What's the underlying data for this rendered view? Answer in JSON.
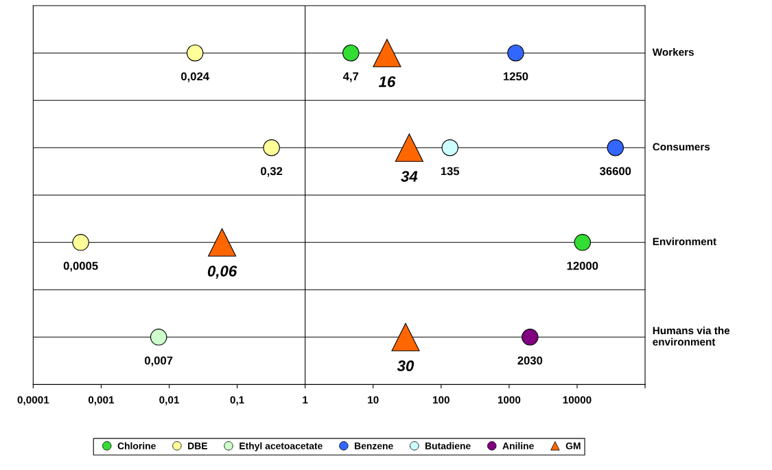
{
  "chart_data": {
    "type": "scatter",
    "orientation": "horizontal",
    "log": "x",
    "grid": "y",
    "legend": "bottom",
    "marker": "circle",
    "categories": [
      "Workers",
      "Consumers",
      "Environment",
      "Humans via the environment"
    ],
    "xlim": [
      0.0001,
      100000
    ],
    "xticks": [
      {
        "value": 0.0001,
        "label": "0,0001"
      },
      {
        "value": 0.001,
        "label": "0,001"
      },
      {
        "value": 0.01,
        "label": "0,01"
      },
      {
        "value": 0.1,
        "label": "0,1"
      },
      1,
      10,
      100,
      1000,
      10000,
      {
        "value": 100000,
        "label": null
      }
    ],
    "ref_lines": [
      {
        "axis": "x",
        "value": 1,
        "color": "#000000"
      }
    ],
    "series": [
      {
        "name": "Chlorine",
        "color": "#33dd33",
        "values": [
          4.7,
          null,
          12000,
          null
        ],
        "value_labels": [
          "4,7",
          null,
          "12000",
          null
        ]
      },
      {
        "name": "DBE",
        "color": "#ffff99",
        "values": [
          0.024,
          0.32,
          0.0005,
          null
        ],
        "value_labels": [
          "0,024",
          "0,32",
          "0,0005",
          null
        ]
      },
      {
        "name": "Ethyl acetoacetate",
        "color": "#ccffcc",
        "values": [
          null,
          null,
          null,
          0.007
        ],
        "value_labels": [
          null,
          null,
          null,
          "0,007"
        ]
      },
      {
        "name": "Benzene",
        "color": "#3366ff",
        "values": [
          1250,
          36600,
          null,
          null
        ],
        "value_labels": [
          "1250",
          "36600",
          null,
          null
        ]
      },
      {
        "name": "Butadiene",
        "color": "#ccffff",
        "values": [
          null,
          135,
          null,
          null
        ],
        "value_labels": [
          null,
          "135",
          null,
          null
        ]
      },
      {
        "name": "Aniline",
        "color": "#800080",
        "values": [
          null,
          null,
          null,
          2030
        ],
        "value_labels": [
          null,
          null,
          null,
          "2030"
        ]
      },
      {
        "name": "GM",
        "color": "#ff6600",
        "marker": "triangle",
        "values": [
          16,
          34,
          0.06,
          30
        ],
        "value_labels": [
          "16",
          "34",
          "0,06",
          "30"
        ]
      }
    ]
  }
}
